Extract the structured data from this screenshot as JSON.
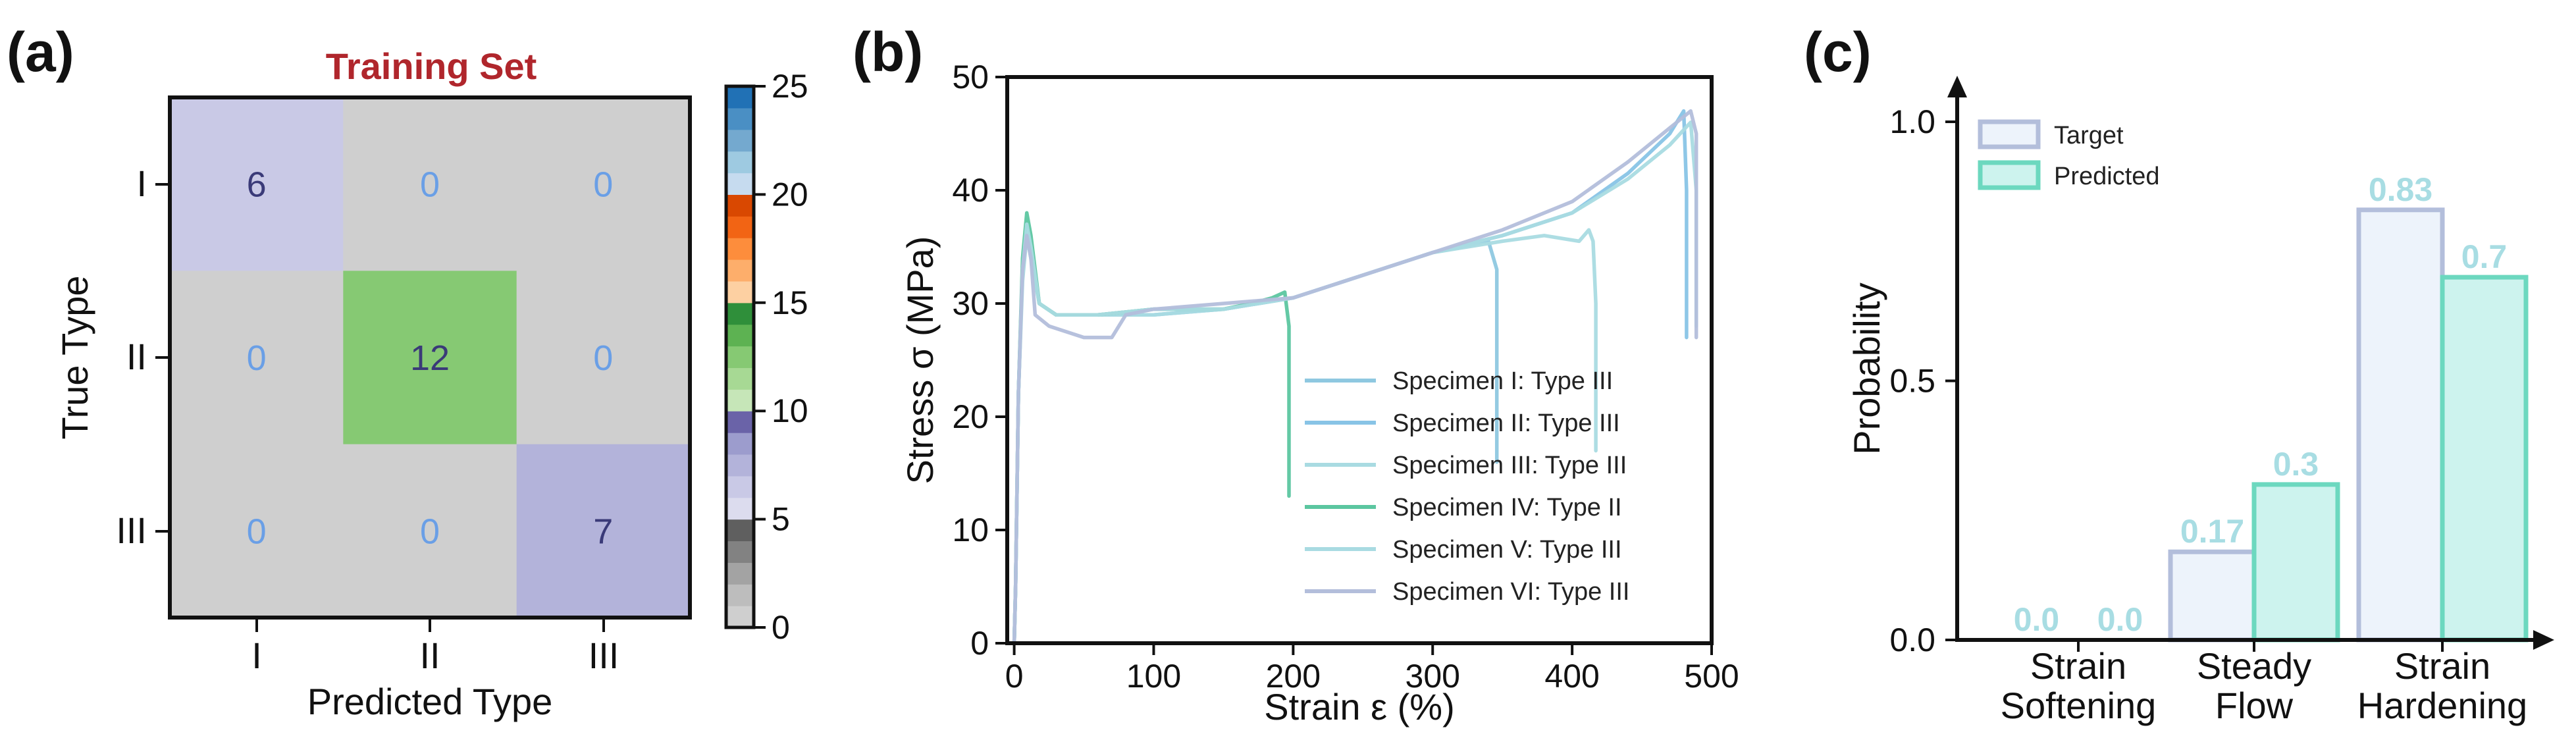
{
  "chart_data": [
    {
      "panel": "(a)",
      "type": "heatmap",
      "title": "Training Set",
      "title_color": "#b0262c",
      "xlabel": "Predicted Type",
      "ylabel": "True Type",
      "row_labels": [
        "I",
        "II",
        "III"
      ],
      "col_labels": [
        "I",
        "II",
        "III"
      ],
      "matrix": [
        [
          6,
          0,
          0
        ],
        [
          0,
          12,
          0
        ],
        [
          0,
          0,
          7
        ]
      ],
      "colorbar": {
        "ticks": [
          "0",
          "5",
          "10",
          "15",
          "20",
          "25"
        ],
        "vmin": 0,
        "vmax": 25,
        "colors": [
          "#cfcfcf",
          "#bdbdbd",
          "#a3a3a3",
          "#828282",
          "#5f5f5f",
          "#dcdcee",
          "#c9c9e6",
          "#b3b3da",
          "#9c9ccd",
          "#6a63a8",
          "#c6e6b8",
          "#a7d994",
          "#86c973",
          "#5db252",
          "#2f8f3a",
          "#fdd0a2",
          "#fdae6b",
          "#fd8d3c",
          "#f26414",
          "#d94801",
          "#c6dbef",
          "#9ecae1",
          "#74a9cf",
          "#4a8fc4",
          "#2171b5"
        ]
      }
    },
    {
      "panel": "(b)",
      "type": "line",
      "xlabel": "Strain ε (%)",
      "ylabel": "Stress σ (MPa)",
      "xlim": [
        -5,
        500
      ],
      "ylim": [
        0,
        50
      ],
      "xticks": [
        "0",
        "100",
        "200",
        "300",
        "400",
        "500"
      ],
      "yticks": [
        "0",
        "10",
        "20",
        "30",
        "40",
        "50"
      ],
      "series": [
        {
          "name": "Specimen I: Type III",
          "color": "#8ec8e0",
          "x": [
            0,
            1,
            3,
            6,
            9,
            12,
            18,
            30,
            60,
            100,
            150,
            200,
            250,
            300,
            340,
            346,
            346
          ],
          "y": [
            0,
            5,
            22,
            33,
            37,
            35,
            30,
            29,
            29,
            29.5,
            29.5,
            30.5,
            32.5,
            34.5,
            35.5,
            33,
            16
          ]
        },
        {
          "name": "Specimen II: Type III",
          "color": "#88c4e6",
          "x": [
            0,
            1,
            3,
            6,
            9,
            12,
            18,
            30,
            60,
            100,
            150,
            200,
            250,
            300,
            350,
            400,
            440,
            470,
            480,
            482,
            482
          ],
          "y": [
            0,
            5,
            22,
            33,
            36,
            34,
            30,
            29,
            29,
            29,
            29.5,
            30.5,
            32.5,
            34.5,
            36,
            38,
            41.5,
            45,
            47,
            40,
            27
          ]
        },
        {
          "name": "Specimen III: Type III",
          "color": "#a9dbe2",
          "x": [
            0,
            1,
            3,
            6,
            9,
            12,
            18,
            30,
            60,
            100,
            150,
            200,
            250,
            300,
            350,
            380,
            405,
            412,
            415,
            417,
            417
          ],
          "y": [
            0,
            5,
            22,
            32,
            36,
            34,
            30,
            29,
            29,
            29,
            29.5,
            30.5,
            32.5,
            34.5,
            35.5,
            36,
            35.5,
            36.5,
            35.5,
            30,
            17
          ]
        },
        {
          "name": "Specimen IV: Type II",
          "color": "#5cc6a0",
          "x": [
            0,
            1,
            3,
            6,
            9,
            12,
            18,
            30,
            60,
            100,
            150,
            170,
            185,
            194,
            197,
            197
          ],
          "y": [
            0,
            5,
            22,
            34,
            38,
            36,
            30,
            29,
            29,
            29.5,
            29.5,
            30,
            30.5,
            31,
            28,
            13
          ]
        },
        {
          "name": "Specimen V: Type III",
          "color": "#a9dbe2",
          "x": [
            0,
            1,
            3,
            6,
            9,
            12,
            18,
            30,
            60,
            100,
            150,
            200,
            250,
            300,
            350,
            400,
            440,
            470,
            485,
            489,
            489
          ],
          "y": [
            0,
            5,
            22,
            33,
            37,
            35,
            30,
            29,
            29,
            29.5,
            29.5,
            30.5,
            32.5,
            34.5,
            36,
            38,
            41,
            44,
            46,
            40,
            28
          ]
        },
        {
          "name": "Specimen VI: Type III",
          "color": "#b3bedb",
          "x": [
            0,
            1,
            3,
            6,
            9,
            12,
            15,
            25,
            50,
            70,
            80,
            100,
            150,
            200,
            250,
            300,
            350,
            400,
            440,
            470,
            485,
            489,
            489
          ],
          "y": [
            0,
            5,
            22,
            33,
            36,
            34,
            29,
            28,
            27,
            27,
            29,
            29.5,
            30,
            30.5,
            32.5,
            34.5,
            36.5,
            39,
            42.5,
            45.5,
            47,
            45,
            27
          ]
        }
      ]
    },
    {
      "panel": "(c)",
      "type": "bar",
      "ylabel": "Probability",
      "ylim": [
        0,
        1.15
      ],
      "yticks": [
        "0.0",
        "0.5",
        "1.0"
      ],
      "category_lines": [
        [
          "Strain",
          "Softening"
        ],
        [
          "Steady",
          "Flow"
        ],
        [
          "Strain",
          "Hardening"
        ]
      ],
      "series": [
        {
          "name": "Target",
          "values": [
            0.0,
            0.17,
            0.83
          ],
          "value_labels": [
            "0.0",
            "0.17",
            "0.83"
          ],
          "fill": "#edf3fb",
          "edge": "#b3bedb"
        },
        {
          "name": "Predicted",
          "values": [
            0.0,
            0.3,
            0.7
          ],
          "value_labels": [
            "0.0",
            "0.3",
            "0.7"
          ],
          "fill": "#cdf3ee",
          "edge": "#6cd8bf"
        }
      ],
      "label_color": "#a8dde3"
    }
  ]
}
